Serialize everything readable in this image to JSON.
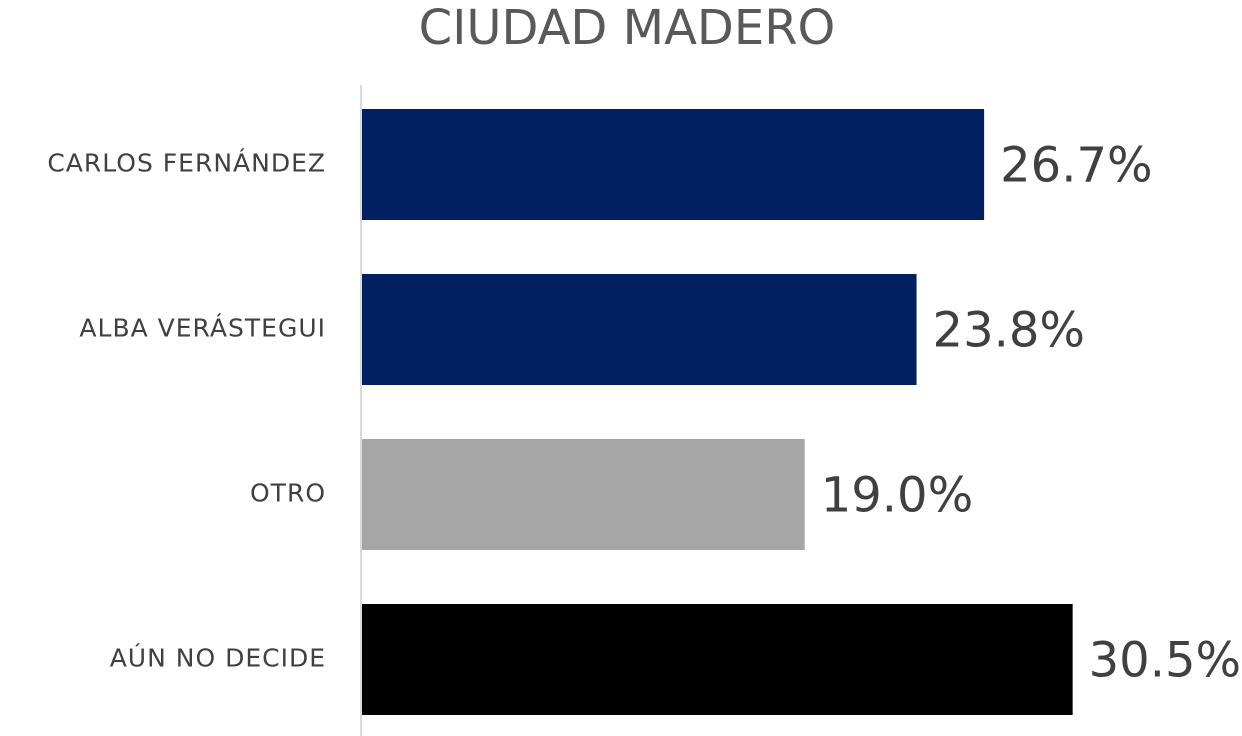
{
  "chart_data": {
    "type": "barh",
    "title": "CIUDAD MADERO",
    "categories": [
      "CARLOS FERNÁNDEZ",
      "ALBA VERÁSTEGUI",
      "OTRO",
      "AÚN NO DECIDE"
    ],
    "values": [
      26.7,
      23.8,
      19.0,
      30.5
    ],
    "value_labels": [
      "26.7%",
      "23.8%",
      "19.0%",
      "30.5%"
    ],
    "colors": [
      "#002060",
      "#002060",
      "#a6a6a6",
      "#000000"
    ],
    "xlim": [
      0,
      35
    ]
  }
}
